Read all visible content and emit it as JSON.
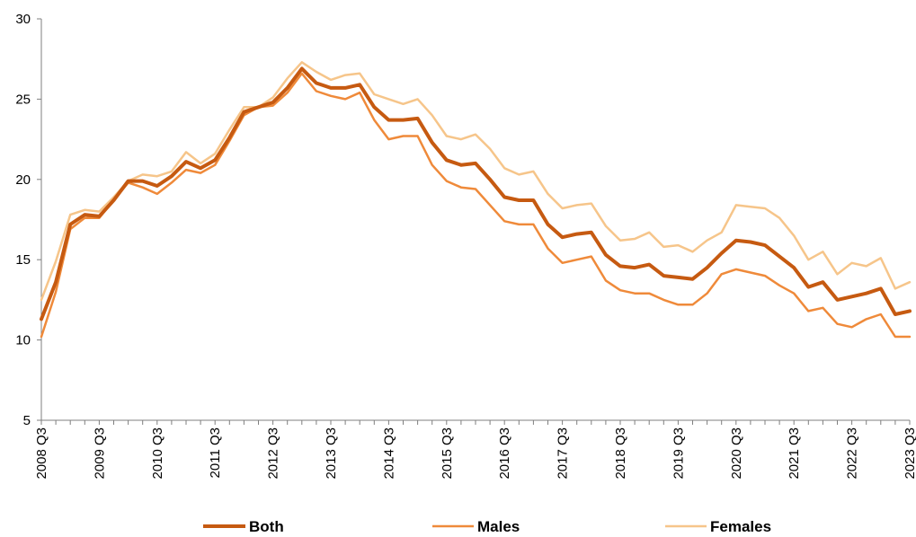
{
  "chart_data": {
    "type": "line",
    "title": "",
    "xlabel": "",
    "ylabel": "",
    "ylim": [
      5,
      30
    ],
    "yticks": [
      5,
      10,
      15,
      20,
      25,
      30
    ],
    "grid": false,
    "legend_position": "bottom",
    "x_tick_labels": [
      "2008 Q3",
      "2009 Q3",
      "2010 Q3",
      "2011 Q3",
      "2012 Q3",
      "2013 Q3",
      "2014 Q3",
      "2015 Q3",
      "2016 Q3",
      "2017 Q3",
      "2018 Q3",
      "2019 Q3",
      "2020 Q3",
      "2021 Q3",
      "2022 Q3",
      "2023 Q3"
    ],
    "categories": [
      "2008 Q3",
      "2008 Q4",
      "2009 Q1",
      "2009 Q2",
      "2009 Q3",
      "2009 Q4",
      "2010 Q1",
      "2010 Q2",
      "2010 Q3",
      "2010 Q4",
      "2011 Q1",
      "2011 Q2",
      "2011 Q3",
      "2011 Q4",
      "2012 Q1",
      "2012 Q2",
      "2012 Q3",
      "2012 Q4",
      "2013 Q1",
      "2013 Q2",
      "2013 Q3",
      "2013 Q4",
      "2014 Q1",
      "2014 Q2",
      "2014 Q3",
      "2014 Q4",
      "2015 Q1",
      "2015 Q2",
      "2015 Q3",
      "2015 Q4",
      "2016 Q1",
      "2016 Q2",
      "2016 Q3",
      "2016 Q4",
      "2017 Q1",
      "2017 Q2",
      "2017 Q3",
      "2017 Q4",
      "2018 Q1",
      "2018 Q2",
      "2018 Q3",
      "2018 Q4",
      "2019 Q1",
      "2019 Q2",
      "2019 Q3",
      "2019 Q4",
      "2020 Q1",
      "2020 Q2",
      "2020 Q3",
      "2020 Q4",
      "2021 Q1",
      "2021 Q2",
      "2021 Q3",
      "2021 Q4",
      "2022 Q1",
      "2022 Q2",
      "2022 Q3",
      "2022 Q4",
      "2023 Q1",
      "2023 Q2",
      "2023 Q3"
    ],
    "series": [
      {
        "name": "Both",
        "color": "#C65A11",
        "stroke": "thick",
        "values": [
          11.3,
          13.6,
          17.2,
          17.8,
          17.7,
          18.7,
          19.9,
          19.9,
          19.6,
          20.2,
          21.1,
          20.7,
          21.2,
          22.6,
          24.2,
          24.5,
          24.8,
          25.7,
          26.9,
          26.0,
          25.7,
          25.7,
          25.9,
          24.5,
          23.7,
          23.7,
          23.8,
          22.3,
          21.2,
          20.9,
          21.0,
          20.0,
          18.9,
          18.7,
          18.7,
          17.2,
          16.4,
          16.6,
          16.7,
          15.3,
          14.6,
          14.5,
          14.7,
          14.0,
          13.9,
          13.8,
          14.5,
          15.4,
          16.2,
          16.1,
          15.9,
          15.2,
          14.5,
          13.3,
          13.6,
          12.5,
          12.7,
          12.9,
          13.2,
          11.6,
          11.8
        ]
      },
      {
        "name": "Males",
        "color": "#EF8A3A",
        "stroke": "medium",
        "values": [
          10.2,
          13.0,
          16.9,
          17.6,
          17.6,
          18.7,
          19.8,
          19.5,
          19.1,
          19.8,
          20.6,
          20.4,
          20.9,
          22.4,
          24.0,
          24.5,
          24.6,
          25.4,
          26.6,
          25.5,
          25.2,
          25.0,
          25.4,
          23.7,
          22.5,
          22.7,
          22.7,
          20.9,
          19.9,
          19.5,
          19.4,
          18.4,
          17.4,
          17.2,
          17.2,
          15.7,
          14.8,
          15.0,
          15.2,
          13.7,
          13.1,
          12.9,
          12.9,
          12.5,
          12.2,
          12.2,
          12.9,
          14.1,
          14.4,
          14.2,
          14.0,
          13.4,
          12.9,
          11.8,
          12.0,
          11.0,
          10.8,
          11.3,
          11.6,
          10.2,
          10.2
        ]
      },
      {
        "name": "Females",
        "color": "#F6C58A",
        "stroke": "medium",
        "values": [
          12.5,
          14.9,
          17.8,
          18.1,
          18.0,
          18.9,
          19.9,
          20.3,
          20.2,
          20.5,
          21.7,
          21.0,
          21.6,
          23.1,
          24.5,
          24.5,
          25.1,
          26.3,
          27.3,
          26.7,
          26.2,
          26.5,
          26.6,
          25.3,
          25.0,
          24.7,
          25.0,
          24.0,
          22.7,
          22.5,
          22.8,
          21.9,
          20.7,
          20.3,
          20.5,
          19.1,
          18.2,
          18.4,
          18.5,
          17.1,
          16.2,
          16.3,
          16.7,
          15.8,
          15.9,
          15.5,
          16.2,
          16.7,
          18.4,
          18.3,
          18.2,
          17.6,
          16.5,
          15.0,
          15.5,
          14.1,
          14.8,
          14.6,
          15.1,
          13.2,
          13.6
        ]
      }
    ]
  }
}
